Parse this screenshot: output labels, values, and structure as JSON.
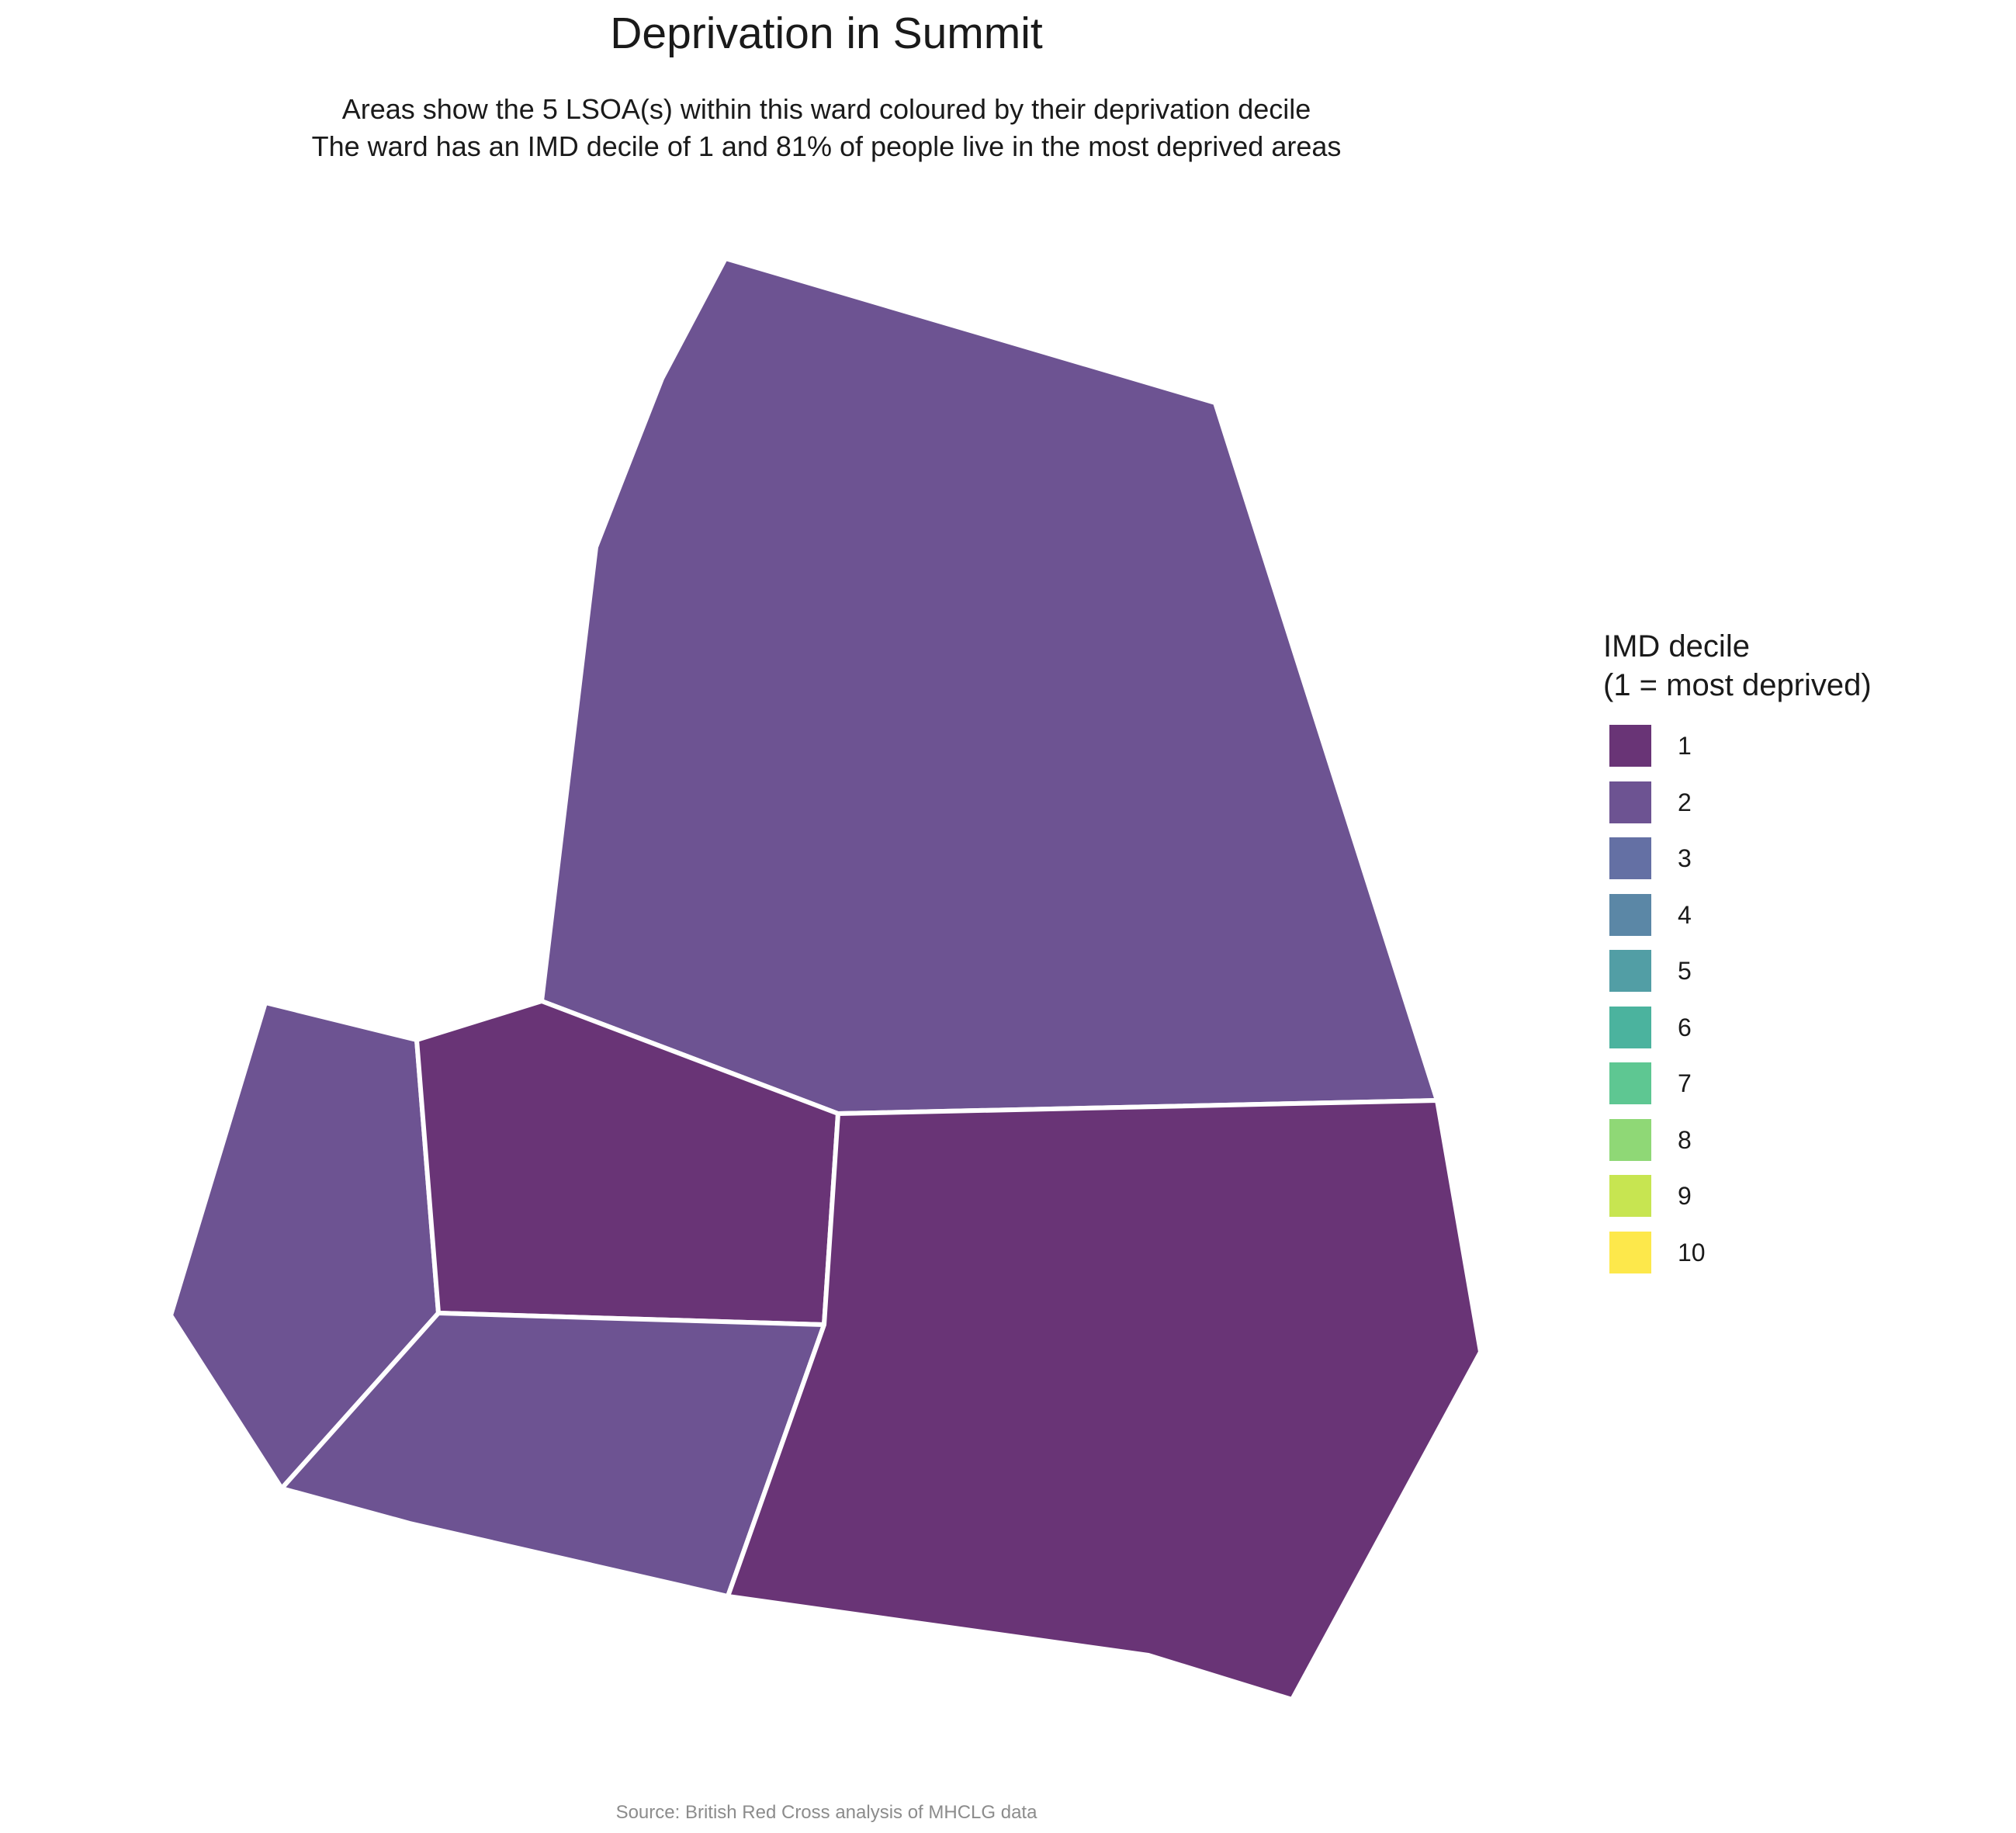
{
  "title": "Deprivation in Summit",
  "subtitle_line1": "Areas show the 5 LSOA(s) within this ward coloured by their deprivation decile",
  "subtitle_line2": "The ward has an IMD decile of 1 and 81% of people live in the most deprived areas",
  "caption": "Source: British Red Cross analysis of MHCLG data",
  "legend": {
    "title_line1": "IMD decile",
    "title_line2": "(1 = most deprived)",
    "items": [
      {
        "label": "1",
        "color": "#693476"
      },
      {
        "label": "2",
        "color": "#6d5392"
      },
      {
        "label": "3",
        "color": "#6470a4"
      },
      {
        "label": "4",
        "color": "#5b87a6"
      },
      {
        "label": "5",
        "color": "#529ea5"
      },
      {
        "label": "6",
        "color": "#4bb39e"
      },
      {
        "label": "7",
        "color": "#5ec792"
      },
      {
        "label": "8",
        "color": "#8fd876"
      },
      {
        "label": "9",
        "color": "#c7e551"
      },
      {
        "label": "10",
        "color": "#fde84b"
      }
    ]
  },
  "areas": [
    {
      "name": "north",
      "decile": 2
    },
    {
      "name": "west",
      "decile": 2
    },
    {
      "name": "center",
      "decile": 1
    },
    {
      "name": "southwest",
      "decile": 2
    },
    {
      "name": "southeast",
      "decile": 1
    }
  ]
}
